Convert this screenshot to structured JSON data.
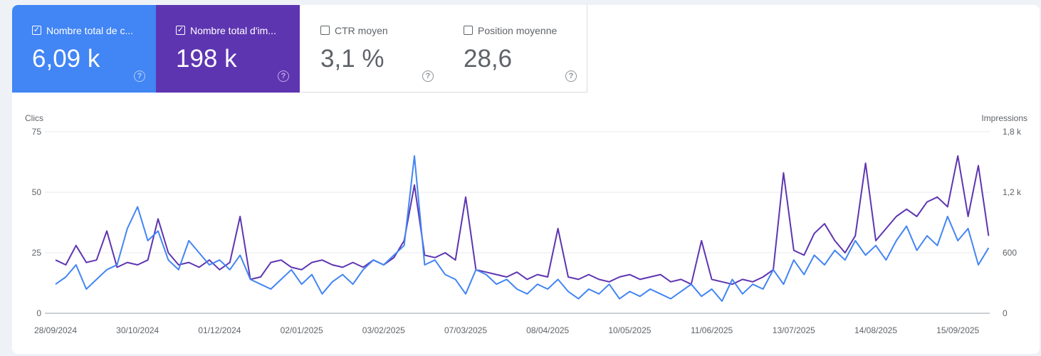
{
  "metrics": [
    {
      "label": "Nombre total de c...",
      "value": "6,09 k",
      "checked": true,
      "color": "#4285f4"
    },
    {
      "label": "Nombre total d'im...",
      "value": "198 k",
      "checked": true,
      "color": "#5e35b1"
    },
    {
      "label": "CTR moyen",
      "value": "3,1 %",
      "checked": false
    },
    {
      "label": "Position moyenne",
      "value": "28,6",
      "checked": false
    }
  ],
  "chart_data": {
    "type": "line",
    "x_step_days": 4,
    "x_tick_labels": [
      "28/09/2024",
      "30/10/2024",
      "01/12/2024",
      "02/01/2025",
      "03/02/2025",
      "07/03/2025",
      "08/04/2025",
      "10/05/2025",
      "11/06/2025",
      "13/07/2025",
      "14/08/2025",
      "15/09/2025"
    ],
    "y_left": {
      "title": "Clics",
      "ticks": [
        "0",
        "25",
        "50",
        "75"
      ],
      "range": [
        0,
        75
      ]
    },
    "y_right": {
      "title": "Impressions",
      "ticks": [
        "0",
        "600",
        "1,2 k",
        "1,8 k"
      ],
      "range": [
        0,
        1800
      ]
    },
    "grid": true,
    "series": [
      {
        "name": "Clics",
        "axis": "left",
        "color": "#4285f4",
        "values": [
          12,
          15,
          20,
          10,
          14,
          18,
          20,
          35,
          44,
          30,
          34,
          22,
          18,
          30,
          25,
          20,
          22,
          18,
          24,
          14,
          12,
          10,
          14,
          18,
          12,
          16,
          8,
          13,
          16,
          12,
          18,
          22,
          20,
          24,
          28,
          65,
          20,
          22,
          16,
          14,
          8,
          18,
          16,
          12,
          14,
          10,
          8,
          12,
          10,
          14,
          9,
          6,
          10,
          8,
          12,
          6,
          9,
          7,
          10,
          8,
          6,
          9,
          12,
          7,
          10,
          5,
          14,
          8,
          12,
          10,
          18,
          12,
          22,
          16,
          24,
          20,
          26,
          22,
          30,
          24,
          28,
          22,
          30,
          36,
          26,
          32,
          28,
          40,
          30,
          35,
          20,
          27
        ]
      },
      {
        "name": "Impressions",
        "axis": "right",
        "color": "#5e35b1",
        "values": [
          528,
          480,
          672,
          504,
          528,
          816,
          456,
          504,
          480,
          528,
          936,
          600,
          480,
          504,
          456,
          528,
          432,
          504,
          960,
          336,
          360,
          504,
          528,
          456,
          432,
          504,
          528,
          480,
          456,
          504,
          456,
          528,
          480,
          552,
          720,
          1272,
          576,
          552,
          600,
          528,
          1152,
          432,
          408,
          384,
          360,
          408,
          336,
          384,
          360,
          840,
          360,
          336,
          384,
          336,
          312,
          360,
          384,
          336,
          360,
          384,
          312,
          336,
          288,
          720,
          336,
          312,
          288,
          336,
          312,
          360,
          432,
          1392,
          624,
          576,
          792,
          888,
          720,
          600,
          768,
          1488,
          720,
          840,
          960,
          1032,
          960,
          1104,
          1152,
          1056,
          1560,
          960,
          1464,
          768
        ]
      }
    ]
  }
}
